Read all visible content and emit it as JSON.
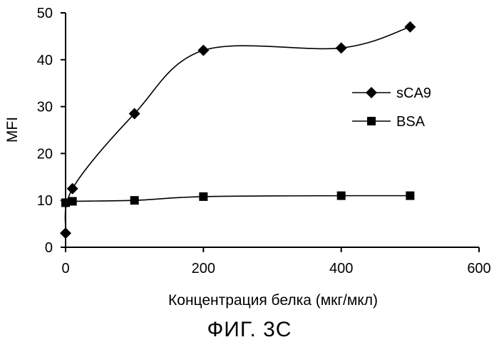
{
  "chart_data": {
    "type": "line",
    "xlabel": "Концентрация белка (мкг/мкл)",
    "ylabel": "MFI",
    "xlim": [
      0,
      600
    ],
    "ylim": [
      0,
      50
    ],
    "x_ticks": [
      0,
      200,
      400,
      600
    ],
    "y_ticks": [
      0,
      10,
      20,
      30,
      40,
      50
    ],
    "grid": false,
    "smooth": true,
    "legend_position": "right",
    "series": [
      {
        "name": "sCA9",
        "marker": "diamond",
        "color": "#000000",
        "x": [
          0,
          10,
          100,
          200,
          400,
          500
        ],
        "y": [
          3,
          12.5,
          28.5,
          42,
          42.5,
          47
        ]
      },
      {
        "name": "BSA",
        "marker": "square",
        "color": "#000000",
        "x": [
          0,
          10,
          100,
          200,
          400,
          500
        ],
        "y": [
          9.5,
          9.8,
          10,
          10.8,
          11,
          11
        ]
      }
    ]
  },
  "caption": "ФИГ. 3С"
}
